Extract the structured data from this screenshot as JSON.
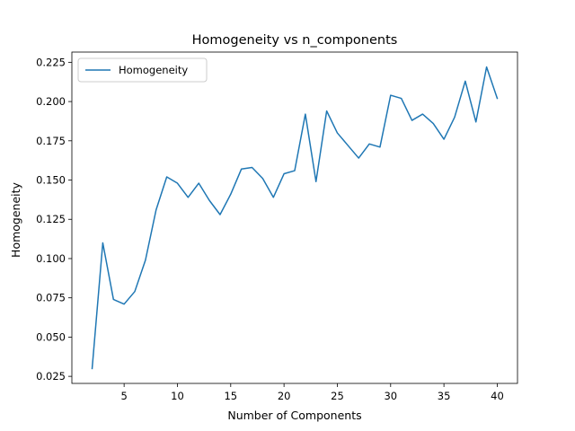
{
  "chart_data": {
    "type": "line",
    "title": "Homogeneity vs n_components",
    "xlabel": "Number of Components",
    "ylabel": "Homogeneity",
    "xlim": [
      0.1,
      41.9
    ],
    "ylim": [
      0.0205,
      0.2315
    ],
    "xticks": [
      5,
      10,
      15,
      20,
      25,
      30,
      35,
      40
    ],
    "xtick_labels": [
      "5",
      "10",
      "15",
      "20",
      "25",
      "30",
      "35",
      "40"
    ],
    "yticks": [
      0.025,
      0.05,
      0.075,
      0.1,
      0.125,
      0.15,
      0.175,
      0.2,
      0.225
    ],
    "ytick_labels": [
      "0.025",
      "0.050",
      "0.075",
      "0.100",
      "0.125",
      "0.150",
      "0.175",
      "0.200",
      "0.225"
    ],
    "grid": false,
    "legend_position": "upper-left",
    "series": [
      {
        "name": "Homogeneity",
        "color": "#1f77b4",
        "x": [
          2,
          3,
          4,
          5,
          6,
          7,
          8,
          9,
          10,
          11,
          12,
          13,
          14,
          15,
          16,
          17,
          18,
          19,
          20,
          21,
          22,
          23,
          24,
          25,
          26,
          27,
          28,
          29,
          30,
          31,
          32,
          33,
          34,
          35,
          36,
          37,
          38,
          39,
          40
        ],
        "y": [
          0.03,
          0.11,
          0.074,
          0.071,
          0.079,
          0.099,
          0.131,
          0.152,
          0.148,
          0.139,
          0.148,
          0.137,
          0.128,
          0.141,
          0.157,
          0.158,
          0.151,
          0.139,
          0.154,
          0.156,
          0.192,
          0.149,
          0.194,
          0.18,
          0.172,
          0.164,
          0.173,
          0.171,
          0.204,
          0.202,
          0.188,
          0.192,
          0.186,
          0.176,
          0.19,
          0.213,
          0.187,
          0.222,
          0.202
        ]
      }
    ]
  }
}
